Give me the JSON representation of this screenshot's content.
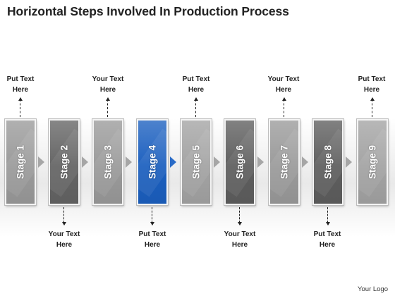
{
  "title": "Horizontal Steps Involved In Production Process",
  "stages": [
    {
      "label": "Stage 1",
      "color": "#9a9a9a"
    },
    {
      "label": "Stage 2",
      "color": "#646464"
    },
    {
      "label": "Stage 3",
      "color": "#9a9a9a"
    },
    {
      "label": "Stage 4",
      "color": "#1b5fbf"
    },
    {
      "label": "Stage 5",
      "color": "#a3a3a3"
    },
    {
      "label": "Stage 6",
      "color": "#5e5e5e"
    },
    {
      "label": "Stage 7",
      "color": "#9a9a9a"
    },
    {
      "label": "Stage 8",
      "color": "#5e5e5e"
    },
    {
      "label": "Stage 9",
      "color": "#a3a3a3"
    }
  ],
  "top_callouts": [
    {
      "line1": "Put Text",
      "line2": "Here"
    },
    {
      "line1": "Your Text",
      "line2": "Here"
    },
    {
      "line1": "Put Text",
      "line2": "Here"
    },
    {
      "line1": "Your Text",
      "line2": "Here"
    },
    {
      "line1": "Put Text",
      "line2": "Here"
    }
  ],
  "bottom_callouts": [
    {
      "line1": "Your Text",
      "line2": "Here"
    },
    {
      "line1": "Put Text",
      "line2": "Here"
    },
    {
      "line1": "Your Text",
      "line2": "Here"
    },
    {
      "line1": "Put Text",
      "line2": "Here"
    }
  ],
  "arrow_colors": [
    "#a6a6a6",
    "#a6a6a6",
    "#a6a6a6",
    "#2a6bc7",
    "#a6a6a6",
    "#a6a6a6",
    "#a6a6a6",
    "#a6a6a6"
  ],
  "logo": "Your Logo"
}
